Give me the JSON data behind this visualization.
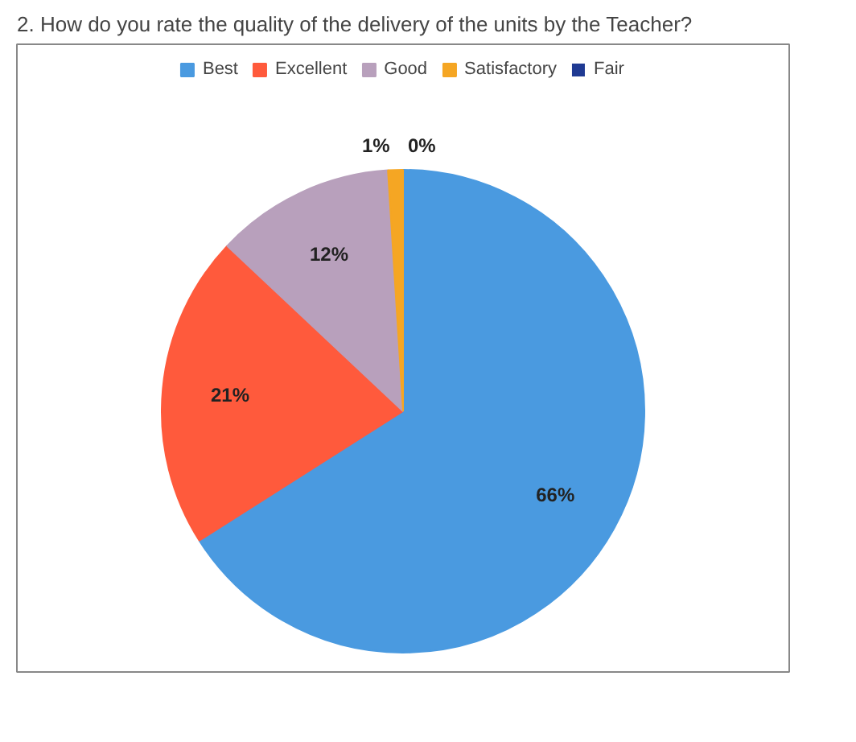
{
  "chart_data": {
    "type": "pie",
    "title": "2. How do you rate the quality of the delivery of the units by the Teacher?",
    "categories": [
      "Best",
      "Excellent",
      "Good",
      "Satisfactory",
      "Fair"
    ],
    "values": [
      66,
      21,
      12,
      1,
      0
    ],
    "colors": [
      "#4a9ae0",
      "#ff5a3c",
      "#b8a0bc",
      "#f5a623",
      "#1f3a93"
    ],
    "value_labels": [
      "66%",
      "21%",
      "12%",
      "1%",
      "0%"
    ],
    "legend": "top"
  }
}
